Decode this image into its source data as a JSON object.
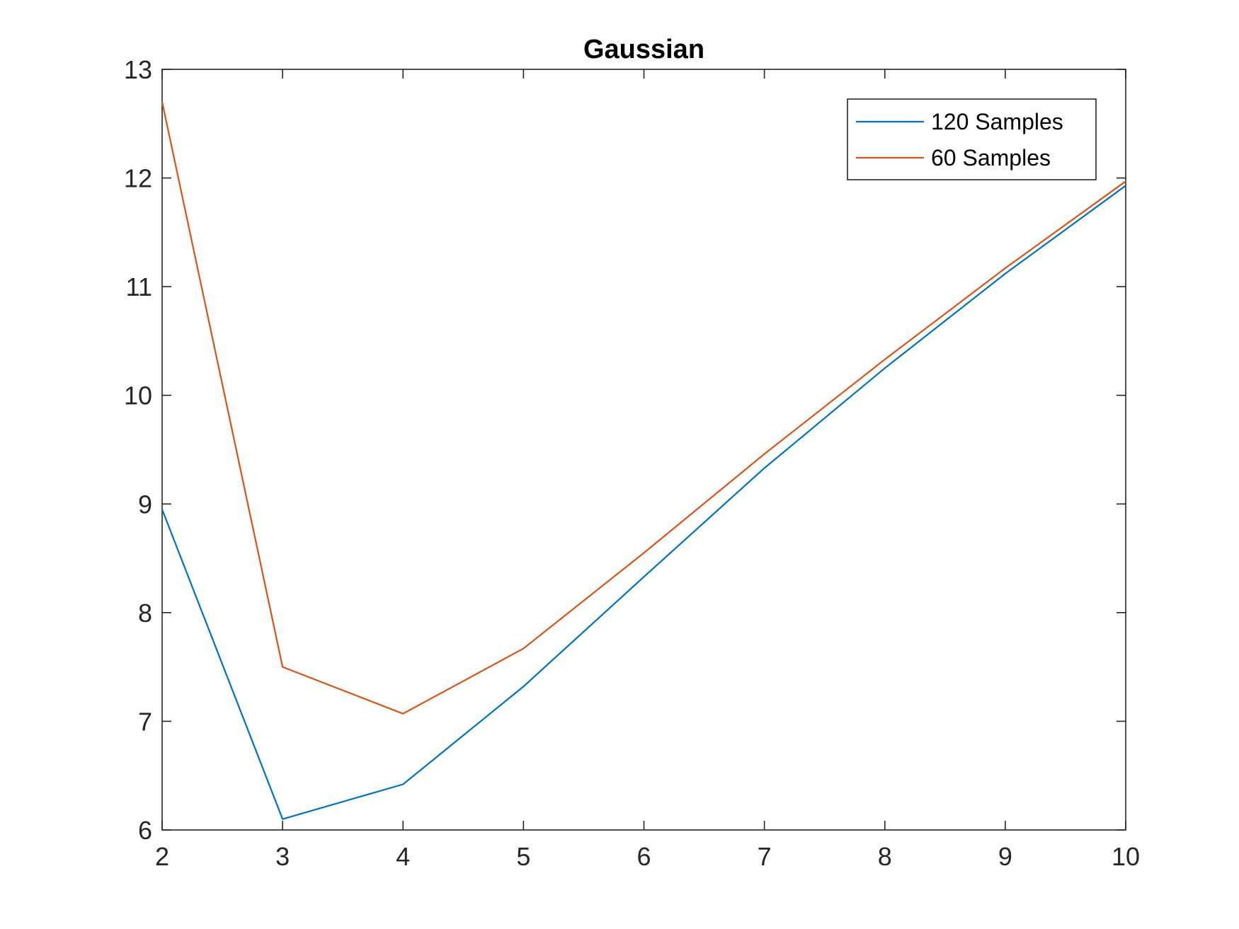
{
  "chart_data": {
    "type": "line",
    "title": "Gaussian",
    "xlabel": "",
    "ylabel": "",
    "xlim": [
      2,
      10
    ],
    "ylim": [
      6,
      13
    ],
    "xticks": [
      "2",
      "3",
      "4",
      "5",
      "6",
      "7",
      "8",
      "9",
      "10"
    ],
    "yticks": [
      "6",
      "7",
      "8",
      "9",
      "10",
      "11",
      "12",
      "13"
    ],
    "x": [
      2,
      3,
      4,
      5,
      6,
      7,
      8,
      9,
      10
    ],
    "series": [
      {
        "name": "120 Samples",
        "color": "#0072BD",
        "values": [
          8.95,
          6.1,
          6.42,
          7.32,
          8.33,
          9.33,
          10.25,
          11.12,
          11.93
        ]
      },
      {
        "name": "60 Samples",
        "color": "#D95319",
        "values": [
          12.7,
          7.5,
          7.07,
          7.67,
          8.55,
          9.46,
          10.33,
          11.17,
          11.97
        ]
      }
    ],
    "grid": false,
    "legend_position": "top-right"
  }
}
